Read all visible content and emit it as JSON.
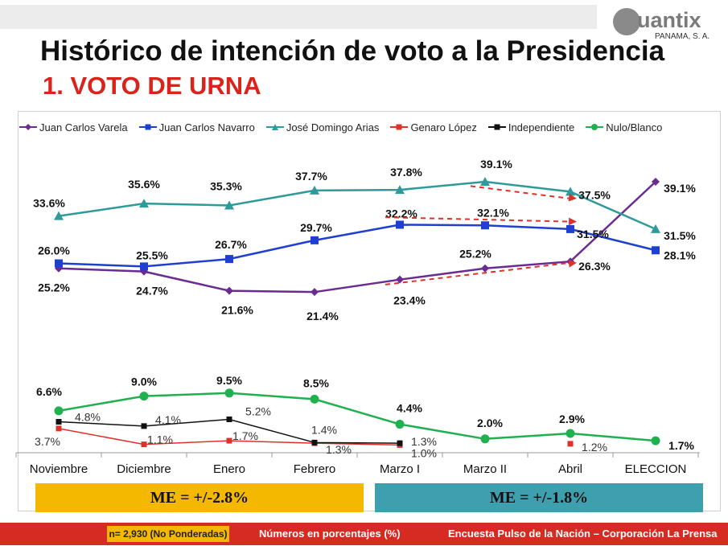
{
  "header": {
    "title": "Histórico de intención de voto a la Presidencia",
    "subtitle": "1. VOTO DE URNA"
  },
  "logo": {
    "text": "uantix",
    "sub": "PANAMA, S. A."
  },
  "margins_of_error": {
    "left": "ME = +/-2.8%",
    "right": "ME = +/-1.8%"
  },
  "footer": {
    "sample": "n= 2,930 (No Ponderadas)",
    "units": "Números en porcentajes (%)",
    "source": "Encuesta Pulso de la Nación – Corporación La Prensa"
  },
  "chart_data": {
    "type": "line",
    "categories": [
      "Noviembre",
      "Diciembre",
      "Enero",
      "Febrero",
      "Marzo I",
      "Marzo II",
      "Abril",
      "ELECCION"
    ],
    "series": [
      {
        "name": "Juan Carlos Varela",
        "color": "#6b2c91",
        "marker": "diamond",
        "values": [
          25.2,
          24.7,
          21.6,
          21.4,
          23.4,
          25.2,
          26.3,
          39.1
        ],
        "labels": [
          "25.2%",
          "24.7%",
          "21.6%",
          "21.4%",
          "23.4%",
          "25.2%",
          "26.3%",
          "39.1%"
        ]
      },
      {
        "name": "Juan Carlos Navarro",
        "color": "#1f3fd0",
        "marker": "square",
        "values": [
          26.0,
          25.5,
          26.7,
          29.7,
          32.2,
          32.1,
          31.5,
          28.1
        ],
        "labels": [
          "26.0%",
          "25.5%",
          "26.7%",
          "29.7%",
          "32.2%",
          "32.1%",
          "31.5%",
          "28.1%"
        ]
      },
      {
        "name": "José Domingo Arias",
        "color": "#2e9a9a",
        "marker": "triangle",
        "values": [
          33.6,
          35.6,
          35.3,
          37.7,
          37.8,
          39.1,
          37.5,
          31.5
        ],
        "labels": [
          "33.6%",
          "35.6%",
          "35.3%",
          "37.7%",
          "37.8%",
          "39.1%",
          "37.5%",
          "31.5%"
        ]
      },
      {
        "name": "Genaro López",
        "color": "#e0302a",
        "marker": "square",
        "values": [
          3.7,
          1.1,
          1.7,
          1.3,
          1.0,
          null,
          1.2,
          null
        ],
        "labels": [
          "3.7%",
          "1.1%",
          "1.7%",
          "1.3%",
          "1.0%",
          null,
          "1.2%",
          null
        ]
      },
      {
        "name": "Independiente",
        "color": "#111111",
        "marker": "square",
        "values": [
          4.8,
          4.1,
          5.2,
          1.4,
          1.3,
          null,
          null,
          null
        ],
        "labels": [
          "4.8%",
          "4.1%",
          "5.2%",
          "1.4%",
          "1.3%",
          null,
          null,
          null
        ]
      },
      {
        "name": "Nulo/Blanco",
        "color": "#20b050",
        "marker": "circle",
        "values": [
          6.6,
          9.0,
          9.5,
          8.5,
          4.4,
          2.0,
          2.9,
          1.7
        ],
        "labels": [
          "6.6%",
          "9.0%",
          "9.5%",
          "8.5%",
          "4.4%",
          "2.0%",
          "2.9%",
          "1.7%"
        ]
      }
    ],
    "annotations": [
      {
        "type": "dashed-arrow",
        "color": "#e0302a",
        "from": {
          "x": "Marzo II",
          "y": 38.4
        },
        "to": {
          "x": "Abril",
          "y": 36.4
        }
      },
      {
        "type": "dashed-arrow",
        "color": "#e0302a",
        "from": {
          "x": "Marzo I",
          "y": 33.4
        },
        "to": {
          "x": "Abril",
          "y": 32.7
        }
      },
      {
        "type": "dashed-arrow",
        "color": "#e0302a",
        "from": {
          "x": "Marzo I",
          "y": 22.6
        },
        "to": {
          "x": "Abril",
          "y": 26.1
        }
      }
    ],
    "legend": "top",
    "grid": false
  }
}
